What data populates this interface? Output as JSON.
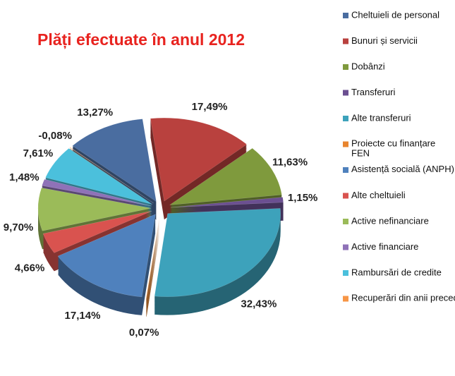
{
  "chart_data": {
    "type": "pie3d",
    "title": "Plăți efectuate în anul 2012",
    "categories": [
      "Cheltuieli de personal",
      "Bunuri și servicii",
      "Dobânzi",
      "Transferuri",
      "Alte transferuri",
      "Proiecte cu finanțare FEN",
      "Asistență socială (ANPH)",
      "Alte cheltuieli",
      "Active nefinanciare",
      "Active financiare",
      "Rambursări de credite",
      "Recuperări din anii precedenți"
    ],
    "values": [
      13.27,
      17.49,
      11.63,
      1.15,
      32.43,
      0.07,
      17.14,
      4.66,
      9.7,
      1.48,
      7.61,
      -0.08
    ],
    "value_labels": [
      "13,27%",
      "17,49%",
      "11,63%",
      "1,15%",
      "32,43%",
      "0,07%",
      "17,14%",
      "4,66%",
      "9,70%",
      "1,48%",
      "7,61%",
      "-0,08%"
    ],
    "colors": [
      "#4a6da0",
      "#b9413e",
      "#7f9a3d",
      "#6b4f91",
      "#3da2bb",
      "#e8852f",
      "#4f81bd",
      "#d9534f",
      "#9bbb59",
      "#8f72b8",
      "#4bc0dc",
      "#f79646"
    ],
    "legend": "right"
  }
}
